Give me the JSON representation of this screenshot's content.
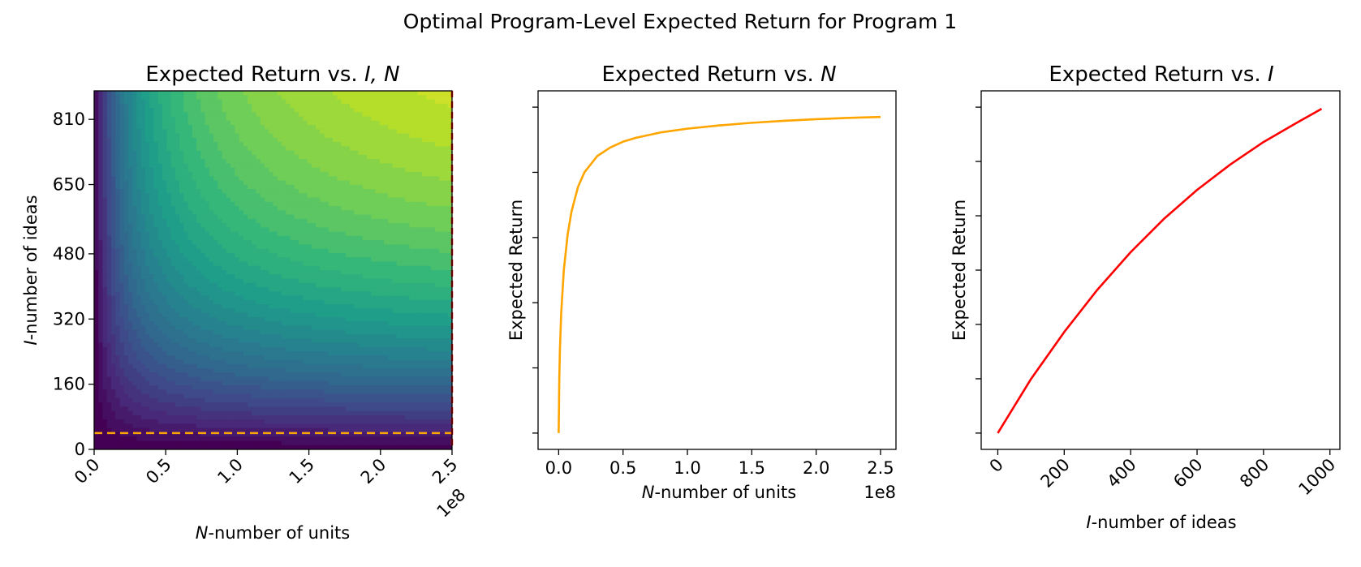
{
  "title": "Optimal Program-Level Expected Return for Program 1",
  "colors": {
    "curve_n": "#ffa500",
    "curve_i": "#ff0000",
    "hline": "#ffa500",
    "vline": "#ff0000",
    "viridis": [
      "#440154",
      "#482878",
      "#3e4a89",
      "#31688e",
      "#26828e",
      "#1f9e89",
      "#35b779",
      "#6ece58",
      "#b5de2b",
      "#fde725"
    ]
  },
  "chart_data": [
    {
      "type": "heatmap",
      "title_prefix": "Expected Return vs. ",
      "title_math": "I, N",
      "xlabel_math": "N",
      "xlabel_rest": "-number of units",
      "ylabel_math": "I",
      "ylabel_rest": "-number of ideas",
      "x_range": [
        0,
        250000000
      ],
      "y_range": [
        0,
        880
      ],
      "x_ticks": [
        0,
        50000000,
        100000000,
        150000000,
        200000000,
        250000000
      ],
      "x_tick_labels": [
        "0.0",
        "0.5",
        "1.0",
        "1.5",
        "2.0",
        "2.5"
      ],
      "x_offset_label": "1e8",
      "y_ticks": [
        0,
        160,
        320,
        480,
        650,
        810
      ],
      "y_tick_labels": [
        "0",
        "160",
        "320",
        "480",
        "650",
        "810"
      ],
      "contour_levels": 28,
      "optimal_I": 40,
      "optimal_N": 250000000,
      "colorscale": "viridis"
    },
    {
      "type": "line",
      "title_prefix": "Expected Return vs. ",
      "title_math": "N",
      "xlabel_math": "N",
      "xlabel_rest": "-number of units",
      "ylabel": "Expected Return",
      "x_offset_label": "1e8",
      "x_ticks": [
        0,
        50000000,
        100000000,
        150000000,
        200000000,
        250000000
      ],
      "x_tick_labels": [
        "0.0",
        "0.5",
        "1.0",
        "1.5",
        "2.0",
        "2.5"
      ],
      "x_range": [
        -16000000,
        262000000
      ],
      "y_range": [
        -0.05,
        1.05
      ],
      "y_tick_count": 6,
      "x": [
        0,
        500000,
        1000000,
        2000000,
        4000000,
        7000000,
        10000000,
        15000000,
        20000000,
        30000000,
        40000000,
        50000000,
        60000000,
        80000000,
        100000000,
        125000000,
        150000000,
        175000000,
        200000000,
        225000000,
        250000000
      ],
      "y": [
        0,
        0.17,
        0.26,
        0.37,
        0.5,
        0.61,
        0.68,
        0.755,
        0.8,
        0.85,
        0.876,
        0.894,
        0.906,
        0.923,
        0.934,
        0.944,
        0.952,
        0.958,
        0.963,
        0.967,
        0.97
      ],
      "color": "#ffa500"
    },
    {
      "type": "line",
      "title_prefix": "Expected Return vs. ",
      "title_math": "I",
      "xlabel_math": "I",
      "xlabel_rest": "-number of ideas",
      "ylabel": "Expected Return",
      "x_ticks": [
        0,
        200,
        400,
        600,
        800,
        1000
      ],
      "x_tick_labels": [
        "0",
        "200",
        "400",
        "600",
        "800",
        "1000"
      ],
      "x_range": [
        -50,
        1030
      ],
      "y_range": [
        -0.05,
        1.05
      ],
      "y_tick_count": 7,
      "x": [
        0,
        100,
        200,
        300,
        400,
        500,
        600,
        700,
        800,
        900,
        975
      ],
      "y": [
        0,
        0.166,
        0.31,
        0.44,
        0.555,
        0.657,
        0.746,
        0.824,
        0.893,
        0.952,
        0.995
      ],
      "color": "#ff0000"
    }
  ]
}
